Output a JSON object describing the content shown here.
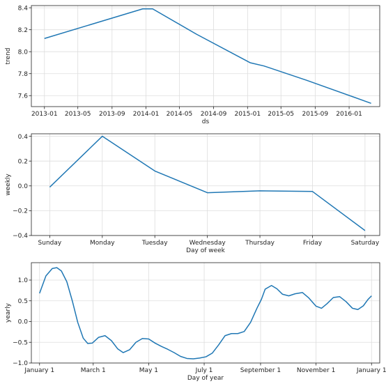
{
  "colors": {
    "series": "#1f77b4",
    "grid": "#dddddd",
    "axis": "#222222"
  },
  "chart_data": [
    {
      "type": "line",
      "xlabel": "ds",
      "ylabel": "trend",
      "grid": true,
      "x_kind": "date",
      "xlim": [
        "2012-11-15",
        "2016-04-20"
      ],
      "ylim": [
        7.5,
        8.42
      ],
      "xticks": [
        {
          "value": "2013-01-01",
          "label": "2013-01"
        },
        {
          "value": "2013-05-01",
          "label": "2013-05"
        },
        {
          "value": "2013-09-01",
          "label": "2013-09"
        },
        {
          "value": "2014-01-01",
          "label": "2014-01"
        },
        {
          "value": "2014-05-01",
          "label": "2014-05"
        },
        {
          "value": "2014-09-01",
          "label": "2014-09"
        },
        {
          "value": "2015-01-01",
          "label": "2015-01"
        },
        {
          "value": "2015-05-01",
          "label": "2015-05"
        },
        {
          "value": "2015-09-01",
          "label": "2015-09"
        },
        {
          "value": "2016-01-01",
          "label": "2016-01"
        }
      ],
      "yticks": [
        {
          "value": 7.6,
          "label": "7.6"
        },
        {
          "value": 7.8,
          "label": "7.8"
        },
        {
          "value": 8.0,
          "label": "8.0"
        },
        {
          "value": 8.2,
          "label": "8.2"
        },
        {
          "value": 8.4,
          "label": "8.4"
        }
      ],
      "series": [
        {
          "x": [
            "2013-01-01",
            "2013-12-20",
            "2014-01-25",
            "2014-07-01",
            "2015-01-10",
            "2015-03-01",
            "2015-08-01",
            "2016-03-20"
          ],
          "y": [
            8.12,
            8.39,
            8.39,
            8.16,
            7.9,
            7.87,
            7.74,
            7.53
          ]
        }
      ]
    },
    {
      "type": "line",
      "xlabel": "Day of week",
      "ylabel": "weekly",
      "grid": true,
      "x_kind": "category",
      "xlim": [
        -0.35,
        6.28
      ],
      "ylim": [
        -0.4,
        0.42
      ],
      "categories": [
        "Sunday",
        "Monday",
        "Tuesday",
        "Wednesday",
        "Thursday",
        "Friday",
        "Saturday"
      ],
      "yticks": [
        {
          "value": -0.4,
          "label": "−0.4"
        },
        {
          "value": -0.2,
          "label": "−0.2"
        },
        {
          "value": 0.0,
          "label": "0.0"
        },
        {
          "value": 0.2,
          "label": "0.2"
        },
        {
          "value": 0.4,
          "label": "0.4"
        }
      ],
      "series": [
        {
          "values": [
            -0.01,
            0.4,
            0.12,
            -0.055,
            -0.04,
            -0.045,
            -0.36
          ]
        }
      ]
    },
    {
      "type": "line",
      "xlabel": "Day of year",
      "ylabel": "yearly",
      "grid": true,
      "x_kind": "day-of-year",
      "xlim": [
        -9,
        374
      ],
      "ylim": [
        -1.0,
        1.42
      ],
      "xticks": [
        {
          "value": 0,
          "label": "January 1"
        },
        {
          "value": 59,
          "label": "March 1"
        },
        {
          "value": 120,
          "label": "May 1"
        },
        {
          "value": 181,
          "label": "July 1"
        },
        {
          "value": 243,
          "label": "September 1"
        },
        {
          "value": 304,
          "label": "November 1"
        },
        {
          "value": 365,
          "label": "January 1"
        }
      ],
      "yticks": [
        {
          "value": -1.0,
          "label": "−1.0"
        },
        {
          "value": -0.5,
          "label": "−0.5"
        },
        {
          "value": 0.0,
          "label": "0.0"
        },
        {
          "value": 0.5,
          "label": "0.5"
        },
        {
          "value": 1.0,
          "label": "1.0"
        }
      ],
      "series": [
        {
          "x": [
            0,
            7,
            14,
            19,
            24,
            30,
            36,
            42,
            48,
            53,
            58,
            65,
            72,
            79,
            86,
            92,
            99,
            106,
            113,
            120,
            127,
            134,
            141,
            148,
            155,
            162,
            169,
            176,
            183,
            190,
            197,
            204,
            211,
            218,
            225,
            232,
            239,
            244,
            248,
            255,
            261,
            267,
            274,
            281,
            289,
            296,
            304,
            310,
            316,
            323,
            330,
            337,
            344,
            350,
            356,
            361,
            365
          ],
          "y": [
            0.68,
            1.1,
            1.28,
            1.3,
            1.22,
            0.96,
            0.5,
            -0.02,
            -0.4,
            -0.53,
            -0.52,
            -0.38,
            -0.34,
            -0.46,
            -0.66,
            -0.75,
            -0.68,
            -0.5,
            -0.41,
            -0.42,
            -0.52,
            -0.6,
            -0.67,
            -0.75,
            -0.84,
            -0.89,
            -0.9,
            -0.88,
            -0.85,
            -0.76,
            -0.56,
            -0.34,
            -0.29,
            -0.29,
            -0.24,
            -0.02,
            0.32,
            0.54,
            0.78,
            0.87,
            0.79,
            0.66,
            0.62,
            0.67,
            0.7,
            0.57,
            0.37,
            0.32,
            0.43,
            0.58,
            0.6,
            0.48,
            0.32,
            0.29,
            0.38,
            0.53,
            0.62
          ]
        }
      ]
    }
  ]
}
